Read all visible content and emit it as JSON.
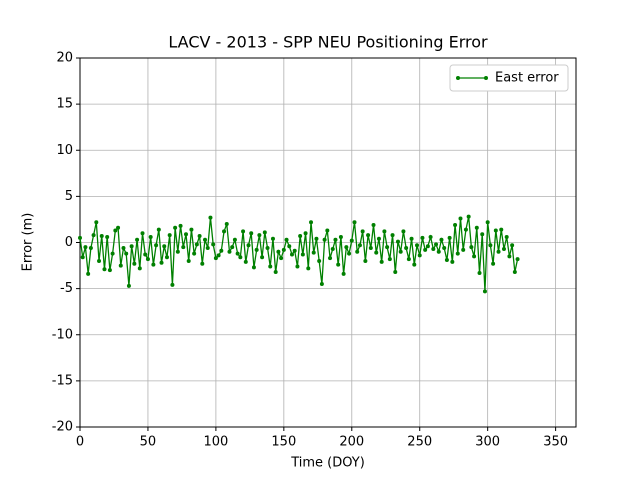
{
  "chart_data": {
    "type": "line",
    "title": "LACV - 2013 - SPP NEU Positioning Error",
    "xlabel": "Time (DOY)",
    "ylabel": "Error (m)",
    "x": [
      0,
      2,
      4,
      6,
      8,
      10,
      12,
      14,
      16,
      18,
      20,
      22,
      24,
      26,
      28,
      30,
      32,
      34,
      36,
      38,
      40,
      42,
      44,
      46,
      48,
      50,
      52,
      54,
      56,
      58,
      60,
      62,
      64,
      66,
      68,
      70,
      72,
      74,
      76,
      78,
      80,
      82,
      84,
      86,
      88,
      90,
      92,
      94,
      96,
      98,
      100,
      102,
      104,
      106,
      108,
      110,
      112,
      114,
      116,
      118,
      120,
      122,
      124,
      126,
      128,
      130,
      132,
      134,
      136,
      138,
      140,
      142,
      144,
      146,
      148,
      150,
      152,
      154,
      156,
      158,
      160,
      162,
      164,
      166,
      168,
      170,
      172,
      174,
      176,
      178,
      180,
      182,
      184,
      186,
      188,
      190,
      192,
      194,
      196,
      198,
      200,
      202,
      204,
      206,
      208,
      210,
      212,
      214,
      216,
      218,
      220,
      222,
      224,
      226,
      228,
      230,
      232,
      234,
      236,
      238,
      240,
      242,
      244,
      246,
      248,
      250,
      252,
      254,
      256,
      258,
      260,
      262,
      264,
      266,
      268,
      270,
      272,
      274,
      276,
      278,
      280,
      282,
      284,
      286,
      288,
      290,
      292,
      294,
      296,
      298,
      300,
      302,
      304,
      306,
      308,
      310,
      312,
      314,
      316,
      318,
      320,
      322
    ],
    "series": [
      {
        "name": "East error",
        "color": "#008000",
        "values": [
          0.5,
          -1.6,
          -0.5,
          -3.4,
          -0.6,
          0.8,
          2.2,
          -2.0,
          0.7,
          -2.9,
          0.6,
          -3.0,
          -1.2,
          1.3,
          1.6,
          -2.5,
          -0.6,
          -1.2,
          -4.7,
          -0.4,
          -2.3,
          0.3,
          -2.8,
          1.0,
          -1.3,
          -1.8,
          0.6,
          -2.4,
          -0.3,
          1.4,
          -2.2,
          -0.4,
          -1.6,
          0.8,
          -4.6,
          1.6,
          -1.0,
          1.8,
          -0.5,
          0.9,
          -2.0,
          1.4,
          -1.2,
          -0.2,
          0.7,
          -2.3,
          0.3,
          -0.6,
          2.7,
          -0.2,
          -1.7,
          -1.4,
          -0.9,
          1.2,
          2.0,
          -1.0,
          -0.5,
          0.3,
          -1.2,
          -1.6,
          1.2,
          -2.1,
          -0.3,
          1.0,
          -2.7,
          -0.8,
          0.8,
          -1.6,
          1.1,
          -0.6,
          -2.6,
          0.4,
          -3.2,
          -1.0,
          -1.7,
          -0.8,
          0.3,
          -0.4,
          -1.3,
          -0.9,
          -2.6,
          0.7,
          -1.3,
          1.0,
          -2.8,
          2.2,
          -1.1,
          0.4,
          -2.0,
          -4.5,
          0.3,
          1.3,
          -1.7,
          -0.7,
          0.3,
          -2.4,
          0.6,
          -3.4,
          -0.5,
          -1.2,
          0.2,
          2.2,
          -1.0,
          -0.3,
          1.2,
          -2.0,
          0.8,
          -0.6,
          1.9,
          -1.1,
          0.4,
          -2.1,
          1.2,
          -0.5,
          -1.8,
          0.8,
          -3.2,
          0.1,
          -1.0,
          1.2,
          -0.6,
          -1.8,
          0.4,
          -2.4,
          -0.3,
          -1.4,
          0.5,
          -0.8,
          -0.4,
          0.6,
          -0.7,
          -0.2,
          -1.0,
          0.3,
          -0.6,
          -1.9,
          0.5,
          -2.1,
          1.9,
          -1.2,
          2.6,
          -0.8,
          1.4,
          2.8,
          -0.5,
          -1.5,
          1.6,
          -3.3,
          0.9,
          -5.3,
          2.2,
          -0.3,
          -2.3,
          1.3,
          -1.0,
          1.4,
          -0.7,
          0.6,
          -1.5,
          -0.3,
          -3.2,
          -1.8
        ]
      }
    ],
    "xlim": [
      0,
      365
    ],
    "xticks": [
      0,
      50,
      100,
      150,
      200,
      250,
      300,
      350
    ],
    "ylim": [
      -20,
      20
    ],
    "yticks": [
      -20,
      -15,
      -10,
      -5,
      0,
      5,
      10,
      15,
      20
    ],
    "grid": true,
    "legend": "upper right"
  }
}
